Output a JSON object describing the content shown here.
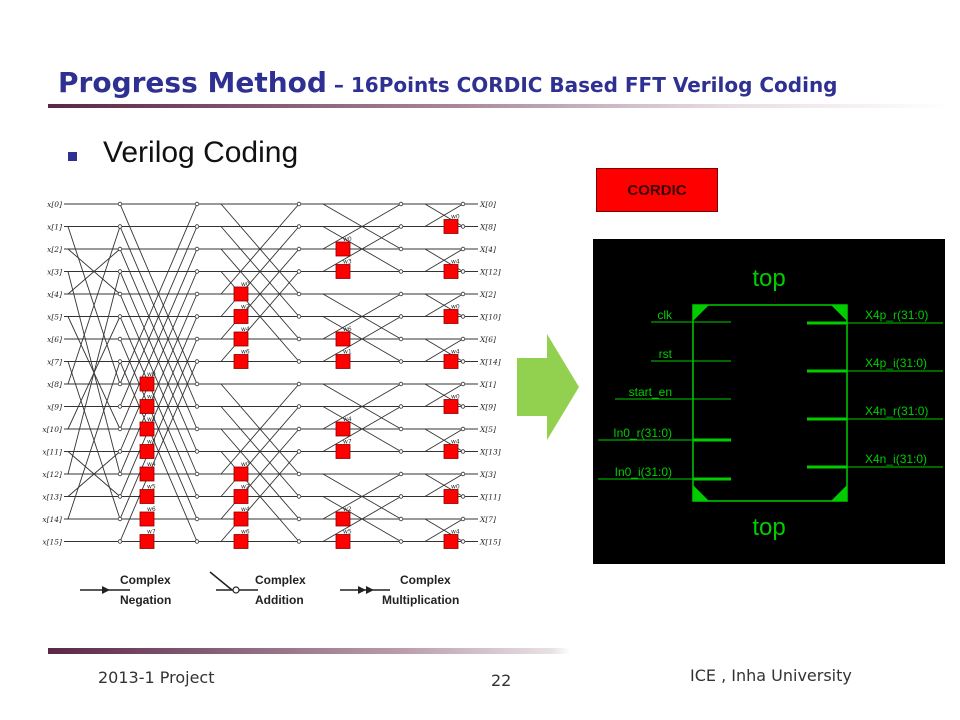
{
  "slide": {
    "title_main": "Progress Method",
    "title_sub": " – 16Points CORDIC Based FFT Verilog Coding",
    "bullet": "Verilog Coding",
    "cordic_label": "CORDIC",
    "footer_left": "2013-1 Project",
    "page_number": "22",
    "footer_right": "ICE , Inha University"
  },
  "fft": {
    "inputs": [
      "x[0]",
      "x[1]",
      "x[2]",
      "x[3]",
      "x[4]",
      "x[5]",
      "x[6]",
      "x[7]",
      "x[8]",
      "x[9]",
      "x[10]",
      "x[11]",
      "x[12]",
      "x[13]",
      "x[14]",
      "x[15]"
    ],
    "outputs": [
      "X[0]",
      "X[8]",
      "X[4]",
      "X[12]",
      "X[2]",
      "X[10]",
      "X[6]",
      "X[14]",
      "X[1]",
      "X[9]",
      "X[5]",
      "X[13]",
      "X[3]",
      "X[11]",
      "X[7]",
      "X[15]"
    ],
    "twiddle_labels": [
      "w0",
      "w1",
      "w2",
      "w3",
      "w4",
      "w5",
      "w6",
      "w7"
    ]
  },
  "legend": {
    "items": [
      {
        "line1": "Complex",
        "line2": "Negation"
      },
      {
        "line1": "Complex",
        "line2": "Addition"
      },
      {
        "line1": "Complex",
        "line2": "Multiplication"
      }
    ]
  },
  "top_module": {
    "title_top": "top",
    "title_bottom": "top",
    "inputs": [
      "clk",
      "rst",
      "start_en",
      "In0_r(31:0)",
      "In0_i(31:0)"
    ],
    "outputs": [
      "X4p_r(31:0)",
      "X4p_i(31:0)",
      "X4n_r(31:0)",
      "X4n_i(31:0)"
    ]
  },
  "colors": {
    "title": "#2e3092",
    "cordic_box": "#ff0000",
    "arrow": "#92d050",
    "schematic_bg": "#000000",
    "schematic_line": "#00cc00",
    "fft_marker": "#ff0000"
  }
}
